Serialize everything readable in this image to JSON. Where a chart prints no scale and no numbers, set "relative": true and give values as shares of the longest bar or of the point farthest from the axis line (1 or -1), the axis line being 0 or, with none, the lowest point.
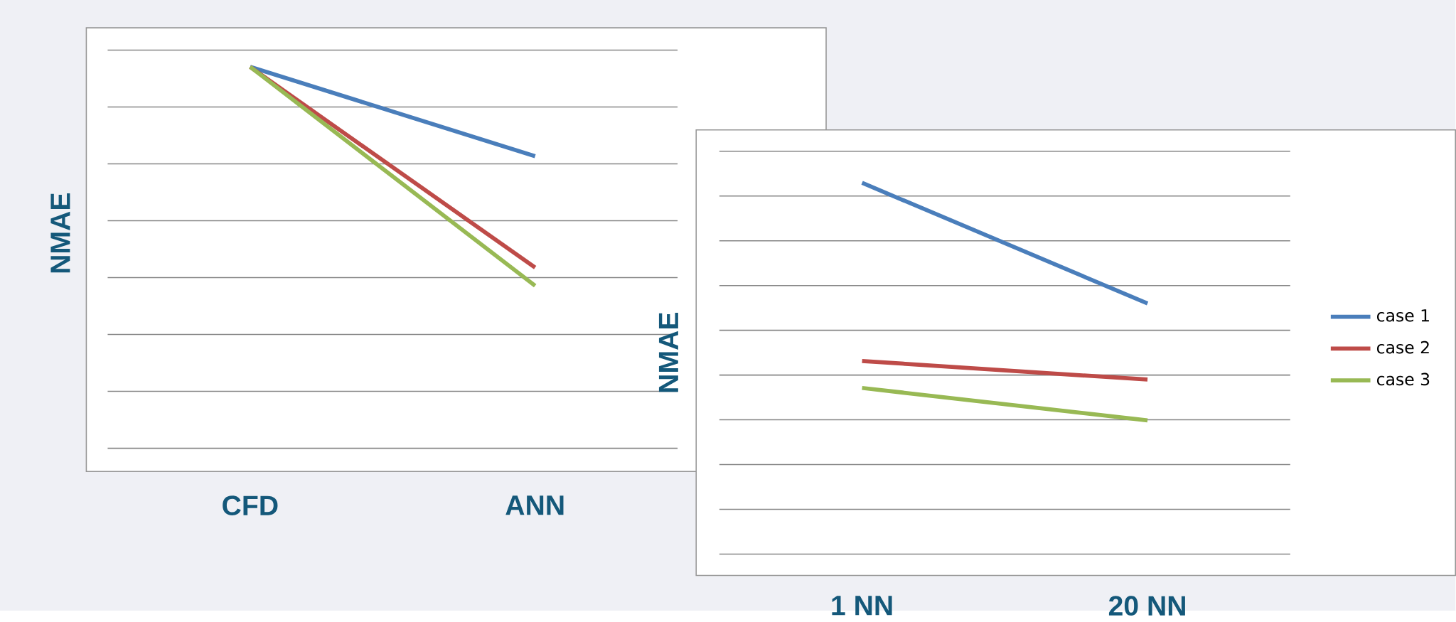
{
  "chart_data": [
    {
      "type": "line",
      "ylabel": "NMAE",
      "categories": [
        "CFD",
        "ANN"
      ],
      "relative": true,
      "grid": "y",
      "legend": false,
      "series": [
        {
          "color": "#4a7ebb",
          "values": [
            1,
            0.766
          ]
        },
        {
          "color": "#be4b48",
          "values": [
            1,
            0.474
          ]
        },
        {
          "color": "#98b954",
          "values": [
            1,
            0.426
          ]
        }
      ]
    },
    {
      "type": "line",
      "ylabel": "NMAE",
      "categories": [
        "1 NN",
        "20 NN"
      ],
      "relative": true,
      "grid": "y",
      "legend": "right",
      "series": [
        {
          "name": "case 1",
          "color": "#4a7ebb",
          "values": [
            1,
            0.675
          ]
        },
        {
          "name": "case 2",
          "color": "#be4b48",
          "values": [
            0.52,
            0.47
          ]
        },
        {
          "name": "case 3",
          "color": "#98b954",
          "values": [
            0.4475,
            0.36
          ]
        }
      ]
    }
  ]
}
